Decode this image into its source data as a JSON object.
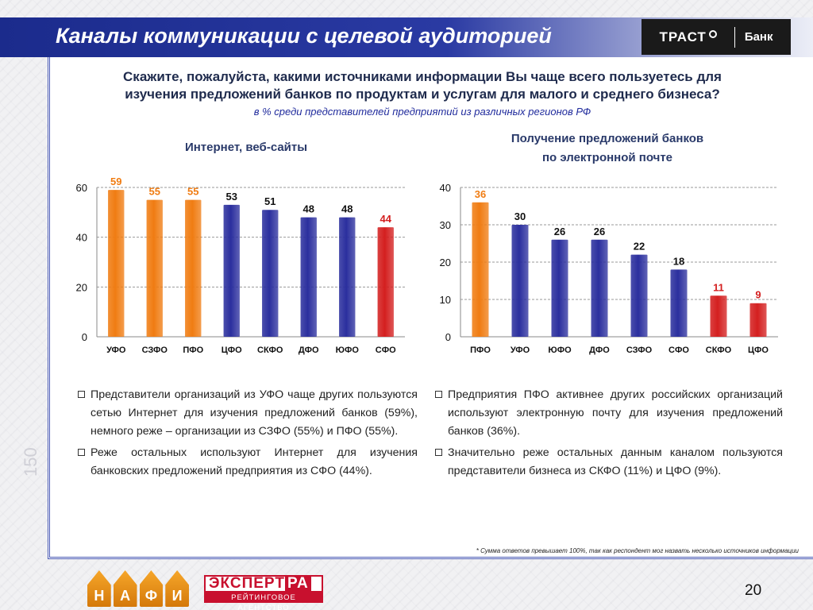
{
  "header": {
    "title": "Каналы коммуникации с целевой аудиторией",
    "logo": {
      "name": "ТРАСТ",
      "suffix": "Банк"
    }
  },
  "side_number": "150",
  "question": {
    "line1": "Скажите, пожалуйста, какими источниками информации Вы чаще всего пользуетесь для",
    "line2": "изучения предложений банков по продуктам и услугам для малого и среднего бизнеса?",
    "subtitle": "в % среди представителей предприятий из различных регионов РФ"
  },
  "colors": {
    "orange": "#f07c12",
    "blue": "#2b2f9e",
    "red": "#d41f1f",
    "label_orange": "#f07c12",
    "label_red": "#d41f1f"
  },
  "chart_data": [
    {
      "type": "bar",
      "title": "Интернет, веб-сайты",
      "categories": [
        "УФО",
        "СЗФО",
        "ПФО",
        "ЦФО",
        "СКФО",
        "ДФО",
        "ЮФО",
        "СФО"
      ],
      "values": [
        59,
        55,
        55,
        53,
        51,
        48,
        48,
        44
      ],
      "bar_colors": [
        "orange",
        "orange",
        "orange",
        "blue",
        "blue",
        "blue",
        "blue",
        "red"
      ],
      "ylim": [
        0,
        60
      ],
      "yticks": [
        0,
        20,
        40,
        60
      ],
      "grid": true
    },
    {
      "type": "bar",
      "title_line1": "Получение предложений банков",
      "title_line2": "по электронной почте",
      "categories": [
        "ПФО",
        "УФО",
        "ЮФО",
        "ДФО",
        "СЗФО",
        "СФО",
        "СКФО",
        "ЦФО"
      ],
      "values": [
        36,
        30,
        26,
        26,
        22,
        18,
        11,
        9
      ],
      "bar_colors": [
        "orange",
        "blue",
        "blue",
        "blue",
        "blue",
        "blue",
        "red",
        "red"
      ],
      "ylim": [
        0,
        40
      ],
      "yticks": [
        0,
        10,
        20,
        30,
        40
      ],
      "grid": true
    }
  ],
  "left_bullets": [
    "Представители организаций из УФО чаще других пользуются сетью Интернет для изучения предложений банков (59%), немного реже – организации из СЗФО (55%) и ПФО (55%).",
    "Реже остальных используют Интернет для изучения банковских предложений предприятия из СФО (44%)."
  ],
  "right_bullets": [
    "Предприятия ПФО активнее других российских организаций используют электронную почту для изучения предложений банков (36%).",
    "Значительно реже остальных данным каналом пользуются представители бизнеса из СКФО (11%) и ЦФО (9%)."
  ],
  "footnote": "* Сумма ответов превышает 100%, так как респондент мог назвать несколько источников информации",
  "footer": {
    "nafi_letters": [
      "Н",
      "А",
      "Ф",
      "И"
    ],
    "expert_name": "ЭКСПЕРТ",
    "expert_ra": "РА",
    "expert_sub": "РЕЙТИНГОВОЕ АГЕНТСТВО",
    "page_number": "20"
  }
}
